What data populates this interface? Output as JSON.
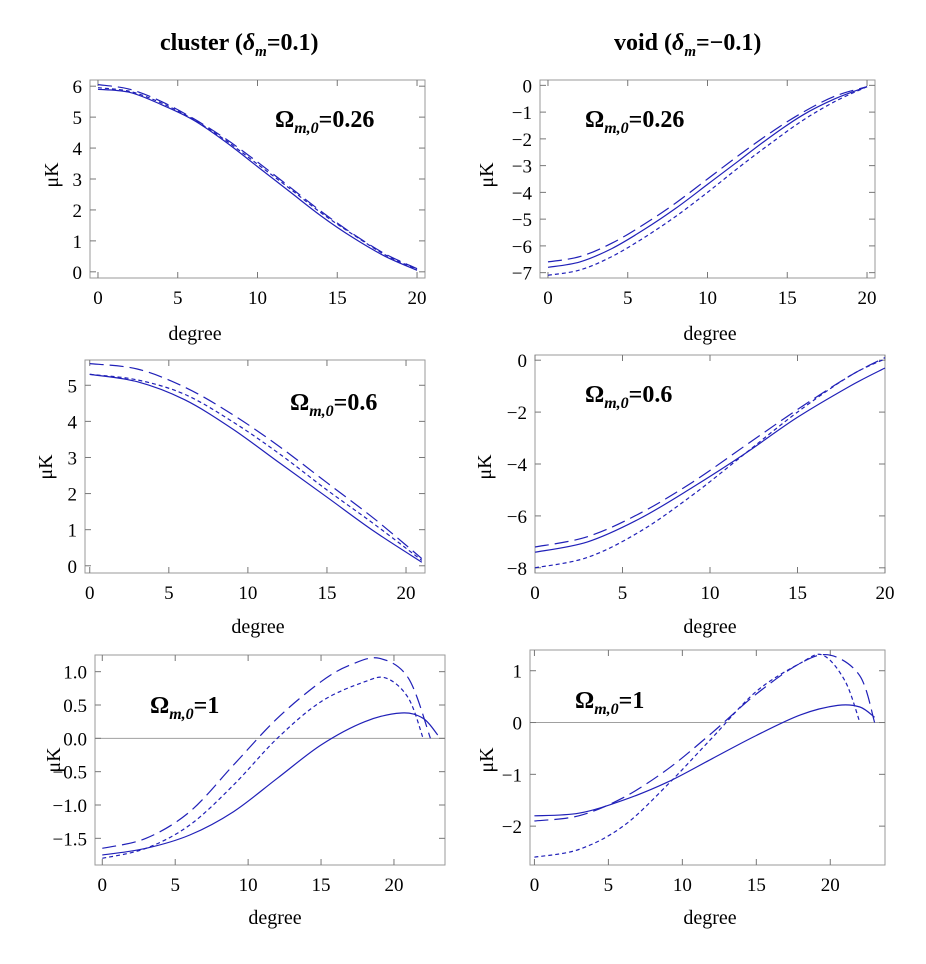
{
  "columns": {
    "left_title": "cluster (",
    "left_title_var": "δ",
    "left_title_sub": "m",
    "left_title_value": "=0.1)",
    "right_title": "void (",
    "right_title_var": "δ",
    "right_title_sub": "m",
    "right_title_value": "=−0.1)"
  },
  "colors": {
    "series": "#2020b8",
    "frame": "#9a9a9a",
    "zero_line": "#a0a0a0"
  },
  "chart_data": [
    {
      "type": "line",
      "id": "cluster-026",
      "annotation": "Ωm,0=0.26",
      "xlabel": "degree",
      "ylabel": "μK",
      "xlim": [
        -0.5,
        20.5
      ],
      "ylim": [
        -0.2,
        6.2
      ],
      "xticks": [
        "0",
        "5",
        "10",
        "15",
        "20"
      ],
      "xtick_values": [
        0,
        5,
        10,
        15,
        20
      ],
      "yticks": [
        "0",
        "1",
        "2",
        "3",
        "4",
        "5",
        "6"
      ],
      "ytick_values": [
        0,
        1,
        2,
        3,
        4,
        5,
        6
      ],
      "zero_line": false,
      "x": [
        0,
        2,
        4,
        6,
        8,
        10,
        12,
        14,
        16,
        18,
        20
      ],
      "series": [
        {
          "name": "solid",
          "style": "solid",
          "values": [
            5.9,
            5.8,
            5.4,
            4.9,
            4.2,
            3.4,
            2.6,
            1.8,
            1.1,
            0.5,
            0.05
          ]
        },
        {
          "name": "short-dash",
          "style": "dotted",
          "values": [
            5.95,
            5.83,
            5.45,
            4.92,
            4.25,
            3.48,
            2.7,
            1.9,
            1.2,
            0.55,
            0.08
          ]
        },
        {
          "name": "long-dash",
          "style": "dashed",
          "values": [
            6.05,
            5.9,
            5.5,
            4.95,
            4.3,
            3.55,
            2.75,
            1.95,
            1.22,
            0.58,
            0.1
          ]
        }
      ]
    },
    {
      "type": "line",
      "id": "void-026",
      "annotation": "Ωm,0=0.26",
      "xlabel": "degree",
      "ylabel": "μK",
      "xlim": [
        -0.5,
        20.5
      ],
      "ylim": [
        -7.2,
        0.2
      ],
      "xticks": [
        "0",
        "5",
        "10",
        "15",
        "20"
      ],
      "xtick_values": [
        0,
        5,
        10,
        15,
        20
      ],
      "yticks": [
        "0",
        "-1",
        "-2",
        "-3",
        "-4",
        "-5",
        "-6",
        "-7"
      ],
      "ytick_values": [
        0,
        -1,
        -2,
        -3,
        -4,
        -5,
        -6,
        -7
      ],
      "zero_line": false,
      "x": [
        0,
        2,
        4,
        6,
        8,
        10,
        12,
        14,
        16,
        18,
        20
      ],
      "series": [
        {
          "name": "solid",
          "style": "solid",
          "values": [
            -6.8,
            -6.6,
            -6.1,
            -5.4,
            -4.6,
            -3.7,
            -2.8,
            -1.9,
            -1.1,
            -0.5,
            -0.05
          ]
        },
        {
          "name": "short-dash",
          "style": "dotted",
          "values": [
            -7.1,
            -6.9,
            -6.4,
            -5.7,
            -4.9,
            -4.0,
            -3.05,
            -2.15,
            -1.3,
            -0.6,
            -0.05
          ]
        },
        {
          "name": "long-dash",
          "style": "dashed",
          "values": [
            -6.6,
            -6.4,
            -5.9,
            -5.2,
            -4.4,
            -3.5,
            -2.6,
            -1.75,
            -1.0,
            -0.4,
            -0.05
          ]
        }
      ]
    },
    {
      "type": "line",
      "id": "cluster-06",
      "annotation": "Ωm,0=0.6",
      "xlabel": "degree",
      "ylabel": "μK",
      "xlim": [
        -0.3,
        21.2
      ],
      "ylim": [
        -0.2,
        5.7
      ],
      "xticks": [
        "0",
        "5",
        "10",
        "15",
        "20"
      ],
      "xtick_values": [
        0,
        5,
        10,
        15,
        20
      ],
      "yticks": [
        "0",
        "1",
        "2",
        "3",
        "4",
        "5"
      ],
      "ytick_values": [
        0,
        1,
        2,
        3,
        4,
        5
      ],
      "zero_line": false,
      "x": [
        0,
        3,
        6,
        9,
        12,
        15,
        18,
        21
      ],
      "series": [
        {
          "name": "solid",
          "style": "solid",
          "values": [
            5.3,
            5.1,
            4.6,
            3.8,
            2.85,
            1.9,
            0.95,
            0.1
          ]
        },
        {
          "name": "short-dash",
          "style": "dotted",
          "values": [
            5.3,
            5.15,
            4.75,
            4.0,
            3.1,
            2.1,
            1.15,
            0.15
          ]
        },
        {
          "name": "long-dash",
          "style": "dashed",
          "values": [
            5.6,
            5.45,
            4.95,
            4.2,
            3.3,
            2.3,
            1.3,
            0.2
          ]
        }
      ]
    },
    {
      "type": "line",
      "id": "void-06",
      "annotation": "Ωm,0=0.6",
      "xlabel": "degree",
      "ylabel": "μK",
      "xlim": [
        0,
        20
      ],
      "ylim": [
        -8.2,
        0.2
      ],
      "xticks": [
        "0",
        "5",
        "10",
        "15",
        "20"
      ],
      "xtick_values": [
        0,
        5,
        10,
        15,
        20
      ],
      "yticks": [
        "0",
        "-2",
        "-4",
        "-6",
        "-8"
      ],
      "ytick_values": [
        0,
        -2,
        -4,
        -6,
        -8
      ],
      "zero_line": false,
      "x": [
        0,
        3,
        6,
        9,
        12,
        15,
        18,
        20
      ],
      "series": [
        {
          "name": "solid",
          "style": "solid",
          "values": [
            -7.4,
            -7.0,
            -6.1,
            -4.9,
            -3.6,
            -2.2,
            -1.0,
            -0.3
          ]
        },
        {
          "name": "short-dash",
          "style": "dotted",
          "values": [
            -8.0,
            -7.6,
            -6.6,
            -5.2,
            -3.6,
            -2.0,
            -0.6,
            0.05
          ]
        },
        {
          "name": "long-dash",
          "style": "dashed",
          "values": [
            -7.2,
            -6.8,
            -5.9,
            -4.7,
            -3.3,
            -1.9,
            -0.6,
            0.1
          ]
        }
      ]
    },
    {
      "type": "line",
      "id": "cluster-1",
      "annotation": "Ωm,0=1",
      "xlabel": "degree",
      "ylabel": "μK",
      "xlim": [
        -0.5,
        23.5
      ],
      "ylim": [
        -1.9,
        1.25
      ],
      "xticks": [
        "0",
        "5",
        "10",
        "15",
        "20"
      ],
      "xtick_values": [
        0,
        5,
        10,
        15,
        20
      ],
      "yticks": [
        "1.0",
        "0.5",
        "0.0",
        "-0.5",
        "-1.0",
        "-1.5"
      ],
      "ytick_values": [
        1.0,
        0.5,
        0.0,
        -0.5,
        -1.0,
        -1.5
      ],
      "zero_line": true,
      "series": [
        {
          "name": "solid",
          "style": "solid",
          "x": [
            0,
            3,
            6,
            9,
            12,
            15,
            18,
            20.5,
            22,
            23
          ],
          "values": [
            -1.75,
            -1.65,
            -1.45,
            -1.1,
            -0.6,
            -0.1,
            0.25,
            0.38,
            0.3,
            0.05
          ]
        },
        {
          "name": "short-dash",
          "style": "dotted",
          "x": [
            0,
            3,
            6,
            9,
            12,
            15,
            18,
            19.5,
            21,
            22
          ],
          "values": [
            -1.8,
            -1.65,
            -1.3,
            -0.7,
            0.0,
            0.55,
            0.85,
            0.9,
            0.6,
            0.0
          ]
        },
        {
          "name": "long-dash",
          "style": "dashed",
          "x": [
            0,
            3,
            6,
            9,
            12,
            15,
            17,
            19,
            21,
            22.5
          ],
          "values": [
            -1.65,
            -1.5,
            -1.1,
            -0.4,
            0.3,
            0.85,
            1.1,
            1.2,
            0.9,
            0.0
          ]
        }
      ]
    },
    {
      "type": "line",
      "id": "void-1",
      "annotation": "Ωm,0=1",
      "xlabel": "degree",
      "ylabel": "μK",
      "xlim": [
        -0.3,
        23.7
      ],
      "ylim": [
        -2.75,
        1.4
      ],
      "xticks": [
        "0",
        "5",
        "10",
        "15",
        "20"
      ],
      "xtick_values": [
        0,
        5,
        10,
        15,
        20
      ],
      "yticks": [
        "1",
        "0",
        "-1",
        "-2"
      ],
      "ytick_values": [
        1,
        0,
        -1,
        -2
      ],
      "zero_line": true,
      "series": [
        {
          "name": "solid",
          "style": "solid",
          "x": [
            0,
            3,
            6,
            9,
            12,
            15,
            18,
            20.5,
            22,
            23
          ],
          "values": [
            -1.8,
            -1.75,
            -1.5,
            -1.15,
            -0.7,
            -0.25,
            0.15,
            0.33,
            0.3,
            0.1
          ]
        },
        {
          "name": "short-dash",
          "style": "dotted",
          "x": [
            0,
            3,
            6,
            9,
            12,
            15,
            18,
            19.5,
            21,
            22
          ],
          "values": [
            -2.6,
            -2.45,
            -2.0,
            -1.2,
            -0.3,
            0.6,
            1.15,
            1.3,
            0.8,
            0.0
          ]
        },
        {
          "name": "long-dash",
          "style": "dashed",
          "x": [
            0,
            3,
            6,
            9,
            12,
            15,
            18,
            20,
            22,
            23
          ],
          "values": [
            -1.9,
            -1.8,
            -1.45,
            -0.9,
            -0.2,
            0.55,
            1.15,
            1.3,
            0.9,
            0.0
          ]
        }
      ]
    }
  ]
}
